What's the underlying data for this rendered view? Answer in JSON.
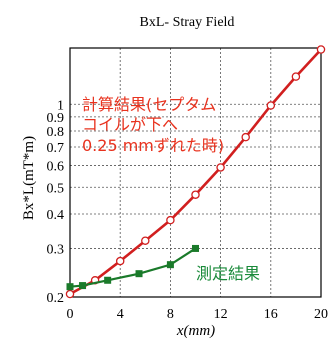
{
  "chart_data": {
    "type": "line",
    "title": "BxL- Stray Field",
    "xlabel": "x(mm)",
    "ylabel": "Bx*L(mT*m)",
    "xlim": [
      0,
      20
    ],
    "ylim": [
      0.2,
      1.6
    ],
    "yscale": "log",
    "grid": true,
    "xticks": [
      "0",
      "4",
      "8",
      "12",
      "16",
      "20"
    ],
    "xtick_values": [
      0,
      4,
      8,
      12,
      16,
      20
    ],
    "yticks": [
      "0.2",
      "0.3",
      "0.4",
      "0.5",
      "0.6",
      "0.7",
      "0.8",
      "0.9",
      "1"
    ],
    "ytick_values": [
      0.2,
      0.3,
      0.4,
      0.5,
      0.6,
      0.7,
      0.8,
      0.9,
      1.0
    ],
    "series": [
      {
        "color": "#d11f1f",
        "marker": "open-circle",
        "x": [
          0,
          2,
          4,
          6,
          8,
          10,
          12,
          14,
          16,
          18,
          20
        ],
        "y": [
          0.205,
          0.23,
          0.27,
          0.32,
          0.38,
          0.47,
          0.59,
          0.76,
          0.99,
          1.26,
          1.58
        ]
      },
      {
        "color": "#1a7a2a",
        "marker": "filled-square",
        "x": [
          0,
          1,
          3,
          5.5,
          8,
          10
        ],
        "y": [
          0.218,
          0.22,
          0.23,
          0.243,
          0.262,
          0.3
        ]
      }
    ],
    "annotations": [
      {
        "text_lines": [
          "計算結果(セプタム",
          "コイルが下へ",
          "0.25 mmずれた時)"
        ],
        "color": "#e8321e"
      },
      {
        "text_lines": [
          "測定結果"
        ],
        "color": "#1a8a3a"
      }
    ]
  }
}
